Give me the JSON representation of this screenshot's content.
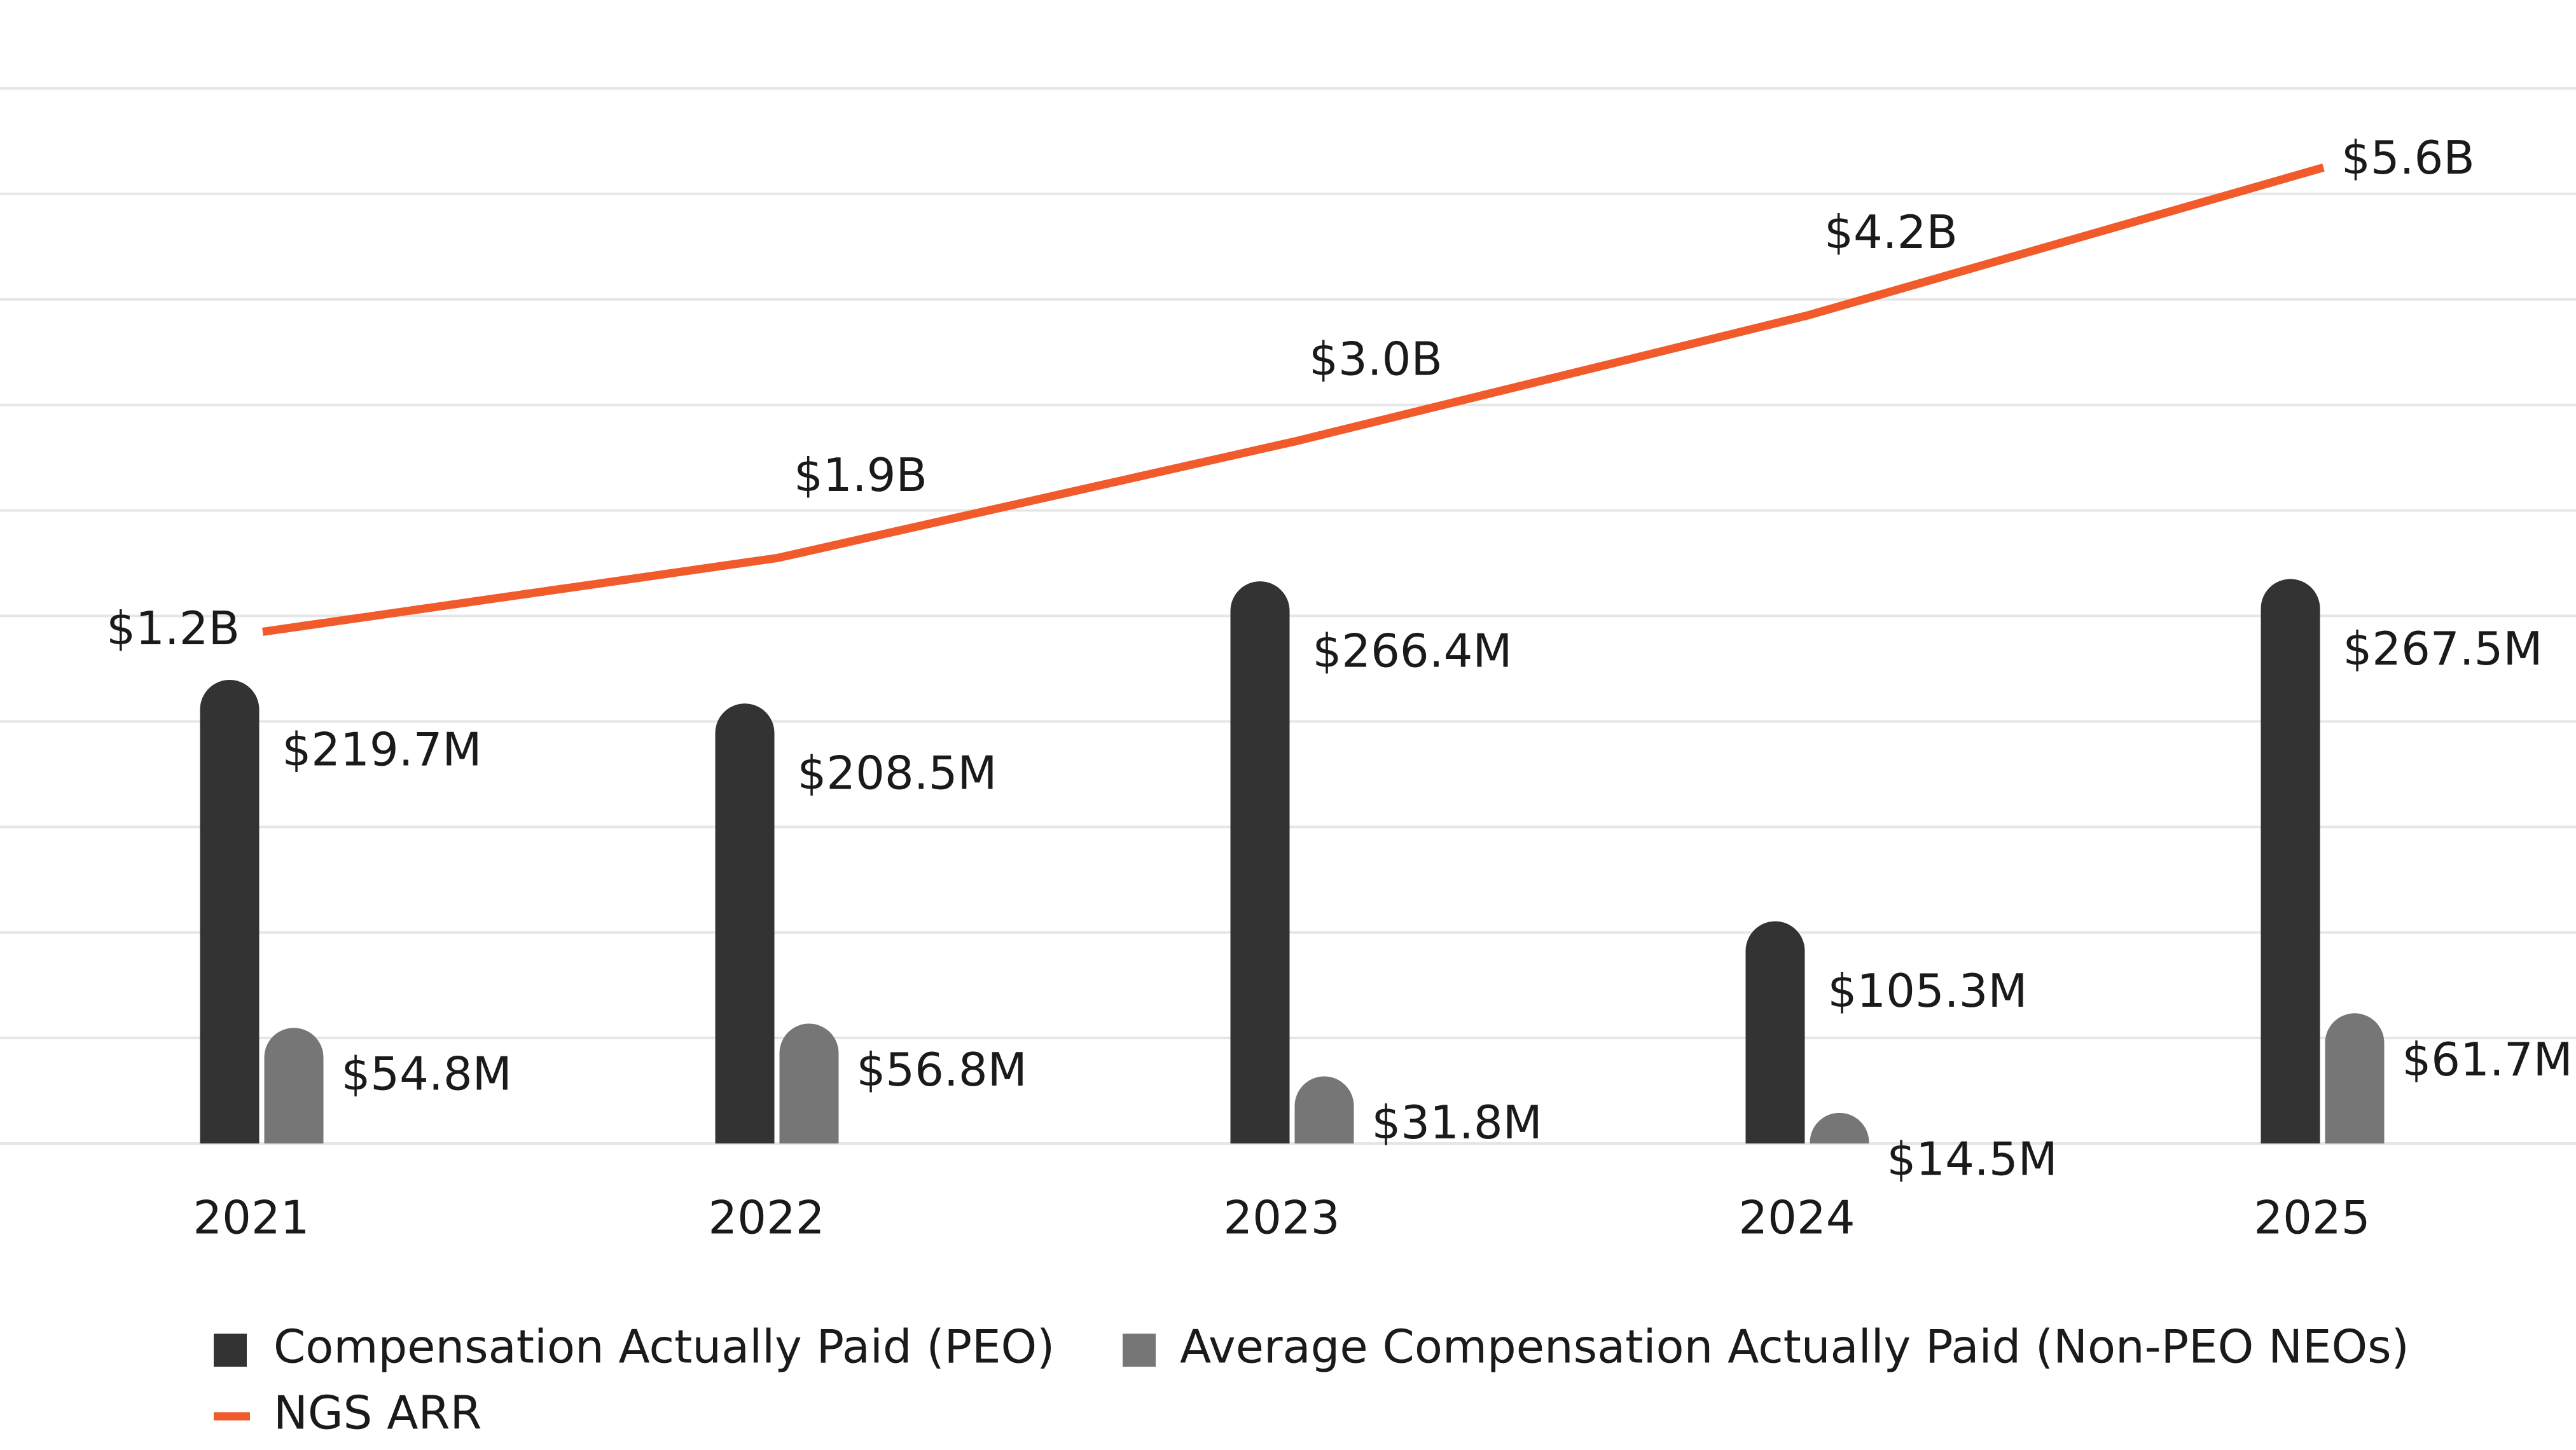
{
  "chart_data": {
    "type": "bar",
    "categories": [
      "2021",
      "2022",
      "2023",
      "2024",
      "2025"
    ],
    "series": [
      {
        "name": "Compensation Actually Paid (PEO)",
        "color": "#333333",
        "values": [
          219.7,
          208.5,
          266.4,
          105.3,
          267.5
        ],
        "value_labels": [
          "$219.7M",
          "$208.5M",
          "$266.4M",
          "$105.3M",
          "$267.5M"
        ]
      },
      {
        "name": "Average Compensation Actually Paid (Non-PEO NEOs)",
        "color": "#767676",
        "values": [
          54.8,
          56.8,
          31.8,
          14.5,
          61.7
        ],
        "value_labels": [
          "$54.8M",
          "$56.8M",
          "$31.8M",
          "$14.5M",
          "$61.7M"
        ]
      },
      {
        "name": "NGS ARR",
        "type": "line",
        "axis": "y2",
        "color": "#f15a2b",
        "values": [
          1.2,
          1.9,
          3.0,
          4.2,
          5.6
        ],
        "value_labels": [
          "$1.2B",
          "$1.9B",
          "$3.0B",
          "$4.2B",
          "$5.6B"
        ]
      }
    ],
    "ylim": [
      0,
      500
    ],
    "yticks": [
      0,
      50,
      100,
      150,
      200,
      250,
      300,
      350,
      400,
      450,
      500
    ],
    "y2lim": [
      -3.65,
      6.35
    ],
    "grid": true
  }
}
